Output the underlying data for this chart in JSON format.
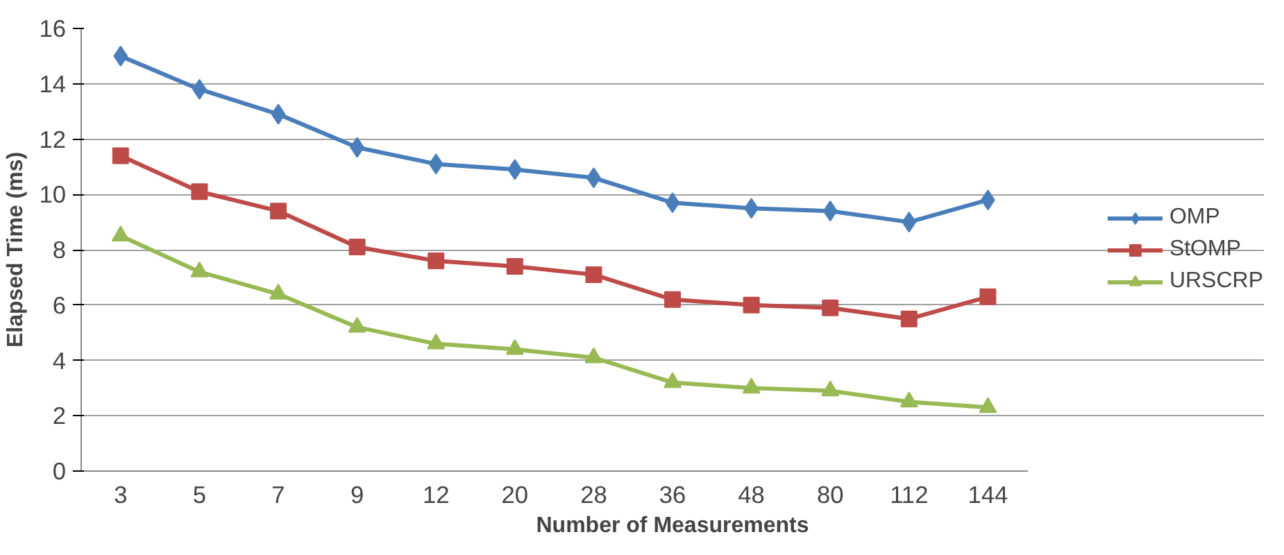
{
  "chart_data": {
    "type": "line",
    "xlabel": "Number of Measurements",
    "ylabel": "Elapsed Time (ms)",
    "categories": [
      "3",
      "5",
      "7",
      "9",
      "12",
      "20",
      "28",
      "36",
      "48",
      "80",
      "112",
      "144"
    ],
    "series": [
      {
        "name": "OMP",
        "color": "#4a7ebb",
        "marker": "diamond",
        "values": [
          15.0,
          13.8,
          12.9,
          11.7,
          11.1,
          10.9,
          10.6,
          9.7,
          9.5,
          9.4,
          9.0,
          9.8
        ]
      },
      {
        "name": "StOMP",
        "color": "#be4b48",
        "marker": "square",
        "values": [
          11.4,
          10.1,
          9.4,
          8.1,
          7.6,
          7.4,
          7.1,
          6.2,
          6.0,
          5.9,
          5.5,
          6.3
        ]
      },
      {
        "name": "URSCRP",
        "color": "#98b954",
        "marker": "triangle",
        "values": [
          8.5,
          7.2,
          6.4,
          5.2,
          4.6,
          4.4,
          4.1,
          3.2,
          3.0,
          2.9,
          2.5,
          2.3
        ]
      }
    ],
    "ylim": [
      0,
      16
    ],
    "yticks": [
      0,
      2,
      4,
      6,
      8,
      10,
      12,
      14,
      16
    ],
    "grid": "y",
    "legend": "right",
    "line_style": "solid"
  }
}
